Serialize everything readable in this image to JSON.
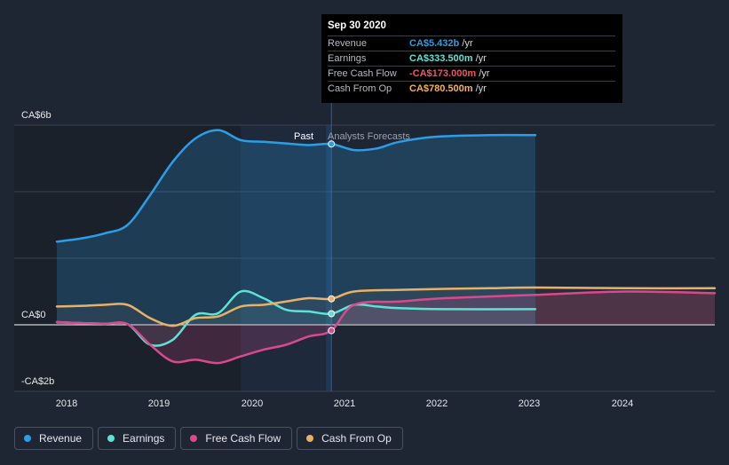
{
  "tooltip": {
    "date": "Sep 30 2020",
    "rows": [
      {
        "label": "Revenue",
        "value": "CA$5.432b",
        "unit": "/yr",
        "color": "#2a9fe8"
      },
      {
        "label": "Earnings",
        "value": "CA$333.500m",
        "unit": "/yr",
        "color": "#5ee2d6"
      },
      {
        "label": "Free Cash Flow",
        "value": "-CA$173.000m",
        "unit": "/yr",
        "color": "#ff4f5a"
      },
      {
        "label": "Cash From Op",
        "value": "CA$780.500m",
        "unit": "/yr",
        "color": "#f2b35c"
      }
    ]
  },
  "section_labels": {
    "past": "Past",
    "forecast": "Analysts Forecasts"
  },
  "legend": [
    {
      "label": "Revenue",
      "color": "#2a9fe8"
    },
    {
      "label": "Earnings",
      "color": "#5ee2d6"
    },
    {
      "label": "Free Cash Flow",
      "color": "#d94a8c"
    },
    {
      "label": "Cash From Op",
      "color": "#e8b266"
    }
  ],
  "chart_data": {
    "type": "line",
    "y_tick_labels": [
      "CA$6b",
      "CA$0",
      "-CA$2b"
    ],
    "x_tick_labels": [
      "2018",
      "2019",
      "2020",
      "2021",
      "2022",
      "2023",
      "2024"
    ],
    "ylim": [
      -2,
      6
    ],
    "xlim": [
      2017.25,
      2024.98
    ],
    "highlight_date": 2020.75,
    "series": [
      {
        "name": "Revenue",
        "color": "#2a9fe8",
        "x": [
          2017.72,
          2018.0,
          2018.25,
          2018.5,
          2018.75,
          2019.0,
          2019.25,
          2019.5,
          2019.75,
          2020.0,
          2020.25,
          2020.5,
          2020.75,
          2021.0,
          2021.25,
          2021.5,
          2021.9,
          2022.5,
          2023.0
        ],
        "y": [
          2.5,
          2.6,
          2.75,
          3.0,
          3.9,
          4.9,
          5.6,
          5.85,
          5.55,
          5.5,
          5.45,
          5.4,
          5.432,
          5.25,
          5.3,
          5.5,
          5.65,
          5.7,
          5.7
        ]
      },
      {
        "name": "Earnings",
        "color": "#5ee2d6",
        "x": [
          2017.72,
          2018.0,
          2018.25,
          2018.5,
          2018.75,
          2019.0,
          2019.25,
          2019.5,
          2019.75,
          2020.0,
          2020.25,
          2020.5,
          2020.75,
          2021.0,
          2021.25,
          2021.5,
          2022.0,
          2023.0
        ],
        "y": [
          0.08,
          0.05,
          0.03,
          0.02,
          -0.6,
          -0.45,
          0.3,
          0.35,
          1.0,
          0.8,
          0.45,
          0.4,
          0.3335,
          0.6,
          0.55,
          0.5,
          0.47,
          0.47
        ]
      },
      {
        "name": "Free Cash Flow",
        "color": "#d94a8c",
        "x": [
          2017.72,
          2018.0,
          2018.25,
          2018.5,
          2018.75,
          2019.0,
          2019.25,
          2019.5,
          2019.75,
          2020.0,
          2020.25,
          2020.5,
          2020.75,
          2021.0,
          2021.5,
          2022.0,
          2023.0,
          2024.0,
          2024.98
        ],
        "y": [
          0.08,
          0.05,
          0.03,
          0.02,
          -0.6,
          -1.1,
          -1.05,
          -1.15,
          -0.95,
          -0.75,
          -0.6,
          -0.35,
          -0.173,
          0.6,
          0.7,
          0.8,
          0.9,
          1.0,
          0.95
        ]
      },
      {
        "name": "Cash From Op",
        "color": "#e8b266",
        "x": [
          2017.72,
          2018.0,
          2018.25,
          2018.5,
          2018.75,
          2019.0,
          2019.25,
          2019.5,
          2019.75,
          2020.0,
          2020.25,
          2020.5,
          2020.75,
          2021.0,
          2021.5,
          2022.0,
          2022.5,
          2023.0,
          2024.0,
          2024.98
        ],
        "y": [
          0.55,
          0.57,
          0.6,
          0.6,
          0.2,
          -0.03,
          0.2,
          0.25,
          0.55,
          0.6,
          0.7,
          0.8,
          0.7805,
          1.0,
          1.05,
          1.08,
          1.1,
          1.12,
          1.1,
          1.1
        ]
      }
    ]
  }
}
